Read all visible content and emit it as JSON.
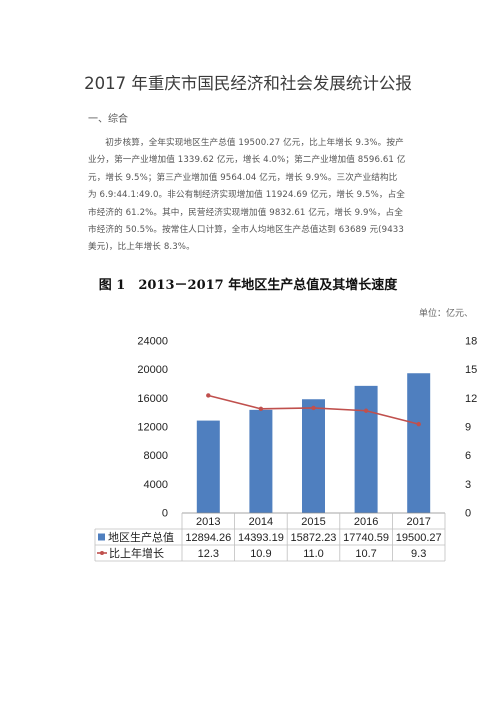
{
  "doc": {
    "title": "2017 年重庆市国民经济和社会发展统计公报",
    "section": "一、综合",
    "paragraph": "初步核算，全年实现地区生产总值 19500.27 亿元，比上年增长 9.3%。按产业分，第一产业增加值 1339.62 亿元，增长 4.0%；第二产业增加值 8596.61 亿元，增长 9.5%；第三产业增加值 9564.04 亿元，增长 9.9%。三次产业结构比为 6.9:44.1:49.0。非公有制经济实现增加值 11924.69 亿元，增长 9.5%，占全市经济的 61.2%。其中，民营经济实现增加值 9832.61 亿元，增长 9.9%，占全市经济的 50.5%。按常住人口计算，全市人均地区生产总值达到 63689 元(9433 美元)，比上年增长 8.3%。"
  },
  "figure": {
    "title": "图 1　2013－2017 年地区生产总值及其增长速度",
    "unit": "单位：亿元、"
  },
  "colors": {
    "bar": "#4f7fbf",
    "line": "#c0504d",
    "grid": "#bfbfbf"
  },
  "chart_data": {
    "type": "bar",
    "categories": [
      "2013",
      "2014",
      "2015",
      "2016",
      "2017"
    ],
    "series": [
      {
        "name": "地区生产总值",
        "kind": "bar",
        "axis": "left",
        "values": [
          12894.26,
          14393.19,
          15872.23,
          17740.59,
          19500.27
        ],
        "labels": [
          "12894.26",
          "14393.19",
          "15872.23",
          "17740.59",
          "19500.27"
        ]
      },
      {
        "name": "比上年增长",
        "kind": "line",
        "axis": "right",
        "values": [
          12.3,
          10.9,
          11.0,
          10.7,
          9.3
        ],
        "labels": [
          "12.3",
          "10.9",
          "11.0",
          "10.7",
          "9.3"
        ]
      }
    ],
    "ylim_left": [
      0,
      24000
    ],
    "yticks_left": [
      "0",
      "4000",
      "8000",
      "12000",
      "16000",
      "20000",
      "24000"
    ],
    "ylim_right": [
      0,
      18
    ],
    "yticks_right": [
      "0",
      "3",
      "6",
      "9",
      "12",
      "15",
      "18"
    ],
    "grid": false,
    "legend": "data-table-below"
  }
}
